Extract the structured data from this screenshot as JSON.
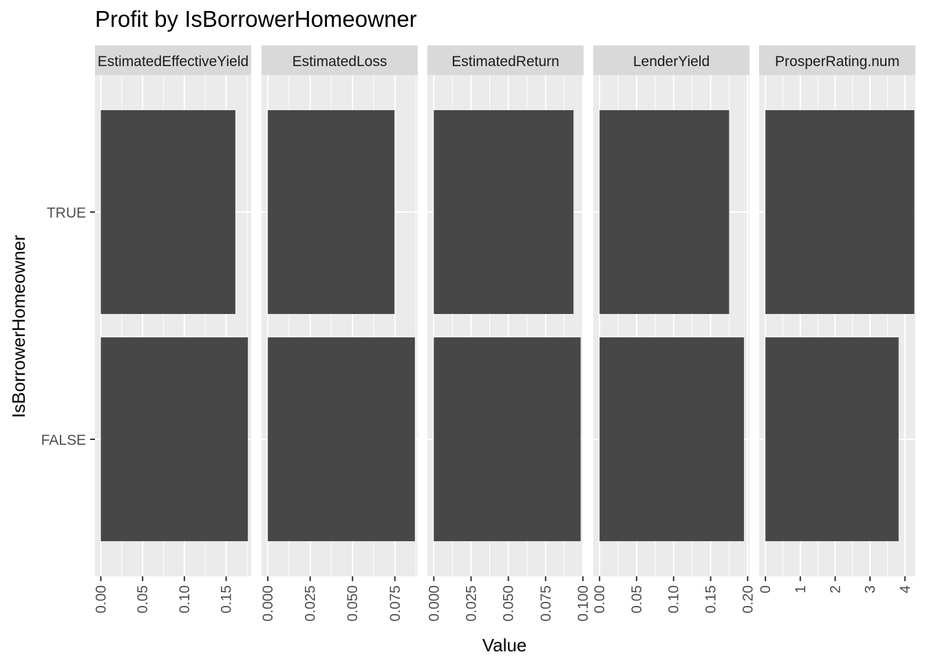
{
  "chart_data": {
    "type": "bar",
    "orientation": "horizontal",
    "title": "Profit by IsBorrowerHomeowner",
    "xlabel": "Value",
    "ylabel": "IsBorrowerHomeowner",
    "categories": [
      "TRUE",
      "FALSE"
    ],
    "grid": true,
    "facets": [
      {
        "label": "EstimatedEffectiveYield",
        "xlim": [
          -0.007,
          0.18
        ],
        "ticks": [
          0.0,
          0.05,
          0.1,
          0.15
        ],
        "tick_labels": [
          "0.00",
          "0.05",
          "0.10",
          "0.15"
        ],
        "values": [
          0.161,
          0.176
        ]
      },
      {
        "label": "EstimatedLoss",
        "xlim": [
          -0.0037,
          0.0885
        ],
        "ticks": [
          0.0,
          0.025,
          0.05,
          0.075
        ],
        "tick_labels": [
          "0.000",
          "0.025",
          "0.050",
          "0.075"
        ],
        "values": [
          0.0748,
          0.0868
        ]
      },
      {
        "label": "EstimatedReturn",
        "xlim": [
          -0.0043,
          0.1005
        ],
        "ticks": [
          0.0,
          0.025,
          0.05,
          0.075,
          0.1
        ],
        "tick_labels": [
          "0.000",
          "0.025",
          "0.050",
          "0.075",
          "0.100"
        ],
        "values": [
          0.0937,
          0.0985
        ]
      },
      {
        "label": "LenderYield",
        "xlim": [
          -0.0085,
          0.2025
        ],
        "ticks": [
          0.0,
          0.05,
          0.1,
          0.15,
          0.2
        ],
        "tick_labels": [
          "0.00",
          "0.05",
          "0.10",
          "0.15",
          "0.20"
        ],
        "values": [
          0.175,
          0.195
        ]
      },
      {
        "label": "ProsperRating.num",
        "xlim": [
          -0.18,
          4.3
        ],
        "ticks": [
          0,
          1,
          2,
          3,
          4
        ],
        "tick_labels": [
          "0",
          "1",
          "2",
          "3",
          "4"
        ],
        "values": [
          4.27,
          3.82
        ]
      }
    ]
  }
}
